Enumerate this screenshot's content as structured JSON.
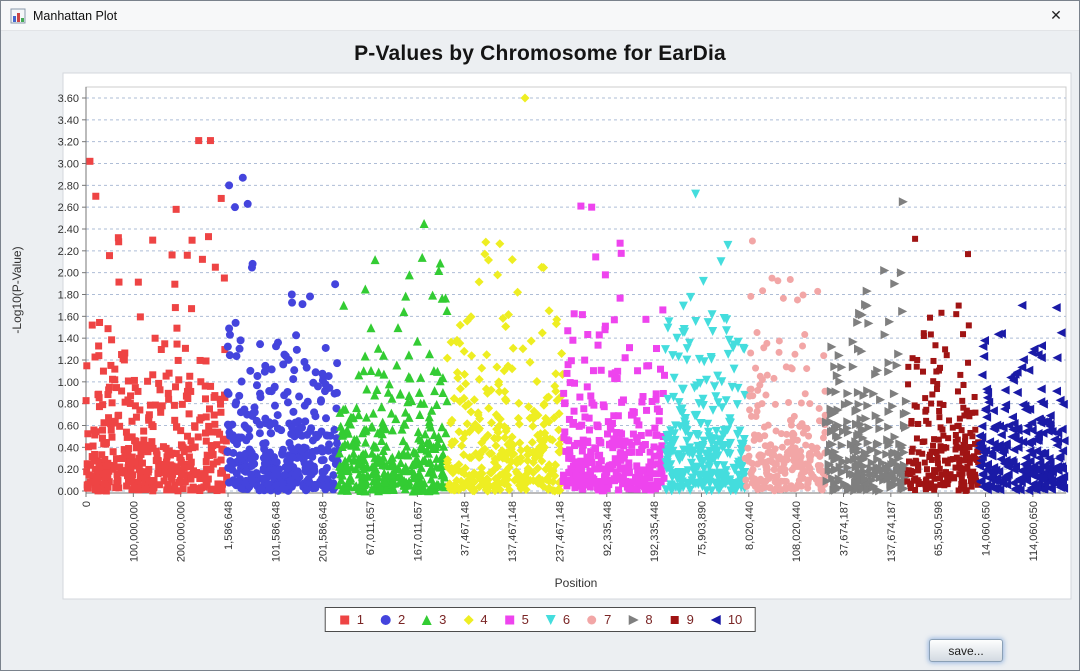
{
  "window": {
    "title": "Manhattan Plot",
    "close_glyph": "✕"
  },
  "footer": {
    "save_label": "save..."
  },
  "chart_data": {
    "type": "scatter",
    "title": "P-Values by Chromosome for EarDia",
    "xlabel": "Position",
    "ylabel": "-Log10(P-Value)",
    "ylim": [
      0,
      3.6
    ],
    "grid": "horizontal-dashed",
    "legend_position": "bottom",
    "x_max": 2070000000,
    "x_tick_interval": 100000000,
    "y_ticks": [
      "0.00",
      "0.20",
      "0.40",
      "0.60",
      "0.80",
      "1.00",
      "1.20",
      "1.40",
      "1.60",
      "1.80",
      "2.00",
      "2.20",
      "2.40",
      "2.60",
      "2.80",
      "3.00",
      "3.20",
      "3.40",
      "3.60"
    ],
    "x_ticks": [
      "0",
      "100,000,000",
      "200,000,000",
      "1,586,648",
      "101,586,648",
      "201,586,648",
      "67,011,657",
      "167,011,657",
      "37,467,148",
      "137,467,148",
      "237,467,148",
      "92,335,448",
      "192,335,448",
      "75,903,890",
      "8,020,440",
      "108,020,440",
      "37,674,187",
      "137,674,187",
      "65,350,598",
      "14,060,650",
      "114,060,650"
    ],
    "colors": {
      "grid": "#aebdd6",
      "axis": "#777777",
      "tick_label": "#333333",
      "axis_label": "#333333",
      "legend_text": "#7a2525",
      "chart_bg": "#ffffff",
      "panel_border": "#d3d7dc"
    },
    "series": [
      {
        "name": "1",
        "color": "#ee4444",
        "marker": "square",
        "size": 7,
        "x_start": 0.0,
        "x_end": 0.1442,
        "n": 430,
        "seed": 11,
        "cap": 2.45,
        "outliers": [
          [
            0.004,
            3.02
          ],
          [
            0.01,
            2.7
          ],
          [
            0.092,
            2.58
          ],
          [
            0.115,
            3.21
          ],
          [
            0.127,
            3.21
          ],
          [
            0.125,
            2.33
          ],
          [
            0.138,
            2.68
          ],
          [
            0.132,
            2.05
          ]
        ]
      },
      {
        "name": "2",
        "color": "#4444dd",
        "marker": "circle",
        "size": 8,
        "x_start": 0.1442,
        "x_end": 0.2575,
        "n": 390,
        "seed": 22,
        "cap": 2.3,
        "outliers": [
          [
            0.146,
            2.8
          ],
          [
            0.152,
            2.6
          ],
          [
            0.16,
            2.87
          ],
          [
            0.165,
            2.63
          ],
          [
            0.17,
            2.08
          ],
          [
            0.21,
            1.8
          ]
        ]
      },
      {
        "name": "3",
        "color": "#33cc33",
        "marker": "triangle-up",
        "size": 9,
        "x_start": 0.2575,
        "x_end": 0.3684,
        "n": 350,
        "seed": 33,
        "cap": 2.2,
        "outliers": [
          [
            0.345,
            2.45
          ],
          [
            0.295,
            2.12
          ],
          [
            0.33,
            1.98
          ],
          [
            0.36,
            2.02
          ],
          [
            0.285,
            1.85
          ]
        ]
      },
      {
        "name": "4",
        "color": "#eeee22",
        "marker": "diamond",
        "size": 9,
        "x_start": 0.3684,
        "x_end": 0.4868,
        "n": 340,
        "seed": 44,
        "cap": 2.3,
        "outliers": [
          [
            0.448,
            3.6
          ],
          [
            0.408,
            2.28
          ],
          [
            0.435,
            2.12
          ],
          [
            0.465,
            2.05
          ],
          [
            0.42,
            1.98
          ]
        ]
      },
      {
        "name": "5",
        "color": "#ee44ee",
        "marker": "square",
        "size": 7,
        "x_start": 0.4868,
        "x_end": 0.5913,
        "n": 310,
        "seed": 55,
        "cap": 2.2,
        "outliers": [
          [
            0.505,
            2.61
          ],
          [
            0.516,
            2.6
          ],
          [
            0.545,
            2.27
          ],
          [
            0.53,
            1.98
          ]
        ]
      },
      {
        "name": "6",
        "color": "#44dddd",
        "marker": "triangle-down",
        "size": 9,
        "x_start": 0.5913,
        "x_end": 0.6725,
        "n": 290,
        "seed": 66,
        "cap": 2.15,
        "outliers": [
          [
            0.622,
            2.72
          ],
          [
            0.655,
            2.25
          ],
          [
            0.648,
            2.1
          ],
          [
            0.63,
            1.92
          ]
        ]
      },
      {
        "name": "7",
        "color": "#f2a6a6",
        "marker": "circle",
        "size": 7,
        "x_start": 0.6725,
        "x_end": 0.7547,
        "n": 240,
        "seed": 77,
        "cap": 2.0,
        "outliers": [
          [
            0.68,
            2.29
          ],
          [
            0.7,
            1.95
          ],
          [
            0.726,
            1.75
          ]
        ]
      },
      {
        "name": "8",
        "color": "#7f7f7f",
        "marker": "triangle-right",
        "size": 9,
        "x_start": 0.7547,
        "x_end": 0.838,
        "n": 250,
        "seed": 88,
        "cap": 1.9,
        "outliers": [
          [
            0.834,
            2.65
          ],
          [
            0.815,
            2.02
          ],
          [
            0.832,
            2.0
          ],
          [
            0.79,
            1.62
          ],
          [
            0.82,
            1.55
          ]
        ]
      },
      {
        "name": "9",
        "color": "#a01414",
        "marker": "square",
        "size": 6,
        "x_start": 0.838,
        "x_end": 0.9111,
        "n": 220,
        "seed": 99,
        "cap": 1.7,
        "outliers": [
          [
            0.846,
            2.31
          ],
          [
            0.9,
            2.17
          ],
          [
            0.888,
            1.62
          ],
          [
            0.855,
            1.42
          ]
        ]
      },
      {
        "name": "10",
        "color": "#1a1aa6",
        "marker": "triangle-left",
        "size": 9,
        "x_start": 0.9111,
        "x_end": 0.9981,
        "n": 260,
        "seed": 110,
        "cap": 1.45,
        "outliers": [
          [
            0.955,
            1.7
          ],
          [
            0.99,
            1.68
          ],
          [
            0.975,
            1.33
          ],
          [
            0.948,
            1.07
          ],
          [
            0.995,
            1.45
          ]
        ]
      }
    ]
  }
}
